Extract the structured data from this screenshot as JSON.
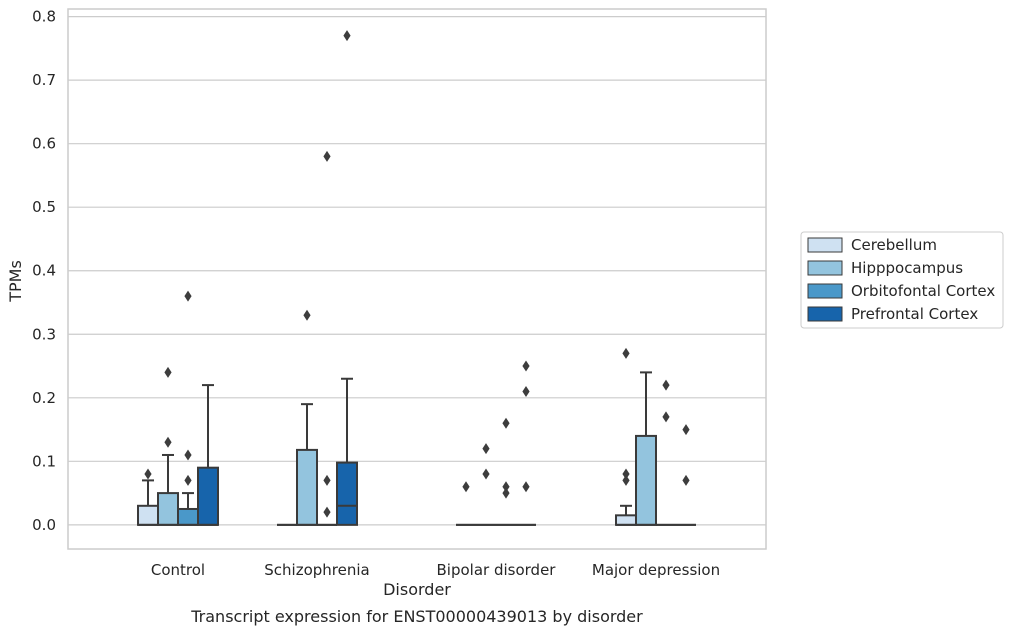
{
  "caption": "Transcript expression for ENST00000439013 by disorder",
  "colors": {
    "Cerebellum": "#cfe1f2",
    "Hipppocampus": "#93c4de",
    "Orbitofontal Cortex": "#4a98c9",
    "Prefrontal Cortex": "#1764ab",
    "box_edge": "#3a3a3a",
    "grid": "#cccccc"
  },
  "chart_data": {
    "type": "box",
    "title": "",
    "xlabel": "Disorder",
    "ylabel": "TPMs",
    "ylim": [
      -0.038,
      0.812
    ],
    "yticks": [
      0.0,
      0.1,
      0.2,
      0.3,
      0.4,
      0.5,
      0.6,
      0.7,
      0.8
    ],
    "ytick_labels": [
      "0.0",
      "0.1",
      "0.2",
      "0.3",
      "0.4",
      "0.5",
      "0.6",
      "0.7",
      "0.8"
    ],
    "grid": "horizontal",
    "legend_position": "outside-right",
    "categories": [
      "Control",
      "Schizophrenia",
      "Bipolar disorder",
      "Major depression"
    ],
    "series": [
      {
        "name": "Cerebellum",
        "boxes": [
          {
            "q1": 0.0,
            "median": 0.0,
            "q3": 0.03,
            "whisker_low": 0.0,
            "whisker_high": 0.07,
            "outliers": [
              0.08
            ]
          },
          {
            "q1": 0.0,
            "median": 0.0,
            "q3": 0.0,
            "whisker_low": 0.0,
            "whisker_high": 0.0,
            "outliers": []
          },
          {
            "q1": 0.0,
            "median": 0.0,
            "q3": 0.0,
            "whisker_low": 0.0,
            "whisker_high": 0.0,
            "outliers": [
              0.06
            ]
          },
          {
            "q1": 0.0,
            "median": 0.0,
            "q3": 0.015,
            "whisker_low": 0.0,
            "whisker_high": 0.03,
            "outliers": [
              0.07,
              0.08,
              0.27
            ]
          }
        ]
      },
      {
        "name": "Hipppocampus",
        "boxes": [
          {
            "q1": 0.0,
            "median": 0.0,
            "q3": 0.05,
            "whisker_low": 0.0,
            "whisker_high": 0.11,
            "outliers": [
              0.13,
              0.24
            ]
          },
          {
            "q1": 0.0,
            "median": 0.0,
            "q3": 0.118,
            "whisker_low": 0.0,
            "whisker_high": 0.19,
            "outliers": [
              0.33
            ]
          },
          {
            "q1": 0.0,
            "median": 0.0,
            "q3": 0.0,
            "whisker_low": 0.0,
            "whisker_high": 0.0,
            "outliers": [
              0.08,
              0.12
            ]
          },
          {
            "q1": 0.0,
            "median": 0.0,
            "q3": 0.14,
            "whisker_low": 0.0,
            "whisker_high": 0.24,
            "outliers": []
          }
        ]
      },
      {
        "name": "Orbitofontal Cortex",
        "boxes": [
          {
            "q1": 0.0,
            "median": 0.0,
            "q3": 0.025,
            "whisker_low": 0.0,
            "whisker_high": 0.05,
            "outliers": [
              0.07,
              0.11,
              0.36
            ]
          },
          {
            "q1": 0.0,
            "median": 0.0,
            "q3": 0.0,
            "whisker_low": 0.0,
            "whisker_high": 0.0,
            "outliers": [
              0.02,
              0.07,
              0.58
            ]
          },
          {
            "q1": 0.0,
            "median": 0.0,
            "q3": 0.0,
            "whisker_low": 0.0,
            "whisker_high": 0.0,
            "outliers": [
              0.05,
              0.06,
              0.16
            ]
          },
          {
            "q1": 0.0,
            "median": 0.0,
            "q3": 0.0,
            "whisker_low": 0.0,
            "whisker_high": 0.0,
            "outliers": [
              0.17,
              0.22
            ]
          }
        ]
      },
      {
        "name": "Prefrontal Cortex",
        "boxes": [
          {
            "q1": 0.0,
            "median": 0.0,
            "q3": 0.09,
            "whisker_low": 0.0,
            "whisker_high": 0.22,
            "outliers": []
          },
          {
            "q1": 0.0,
            "median": 0.03,
            "q3": 0.098,
            "whisker_low": 0.0,
            "whisker_high": 0.23,
            "outliers": [
              0.77
            ]
          },
          {
            "q1": 0.0,
            "median": 0.0,
            "q3": 0.0,
            "whisker_low": 0.0,
            "whisker_high": 0.0,
            "outliers": [
              0.06,
              0.21,
              0.25
            ]
          },
          {
            "q1": 0.0,
            "median": 0.0,
            "q3": 0.0,
            "whisker_low": 0.0,
            "whisker_high": 0.0,
            "outliers": [
              0.07,
              0.15
            ]
          }
        ]
      }
    ]
  }
}
